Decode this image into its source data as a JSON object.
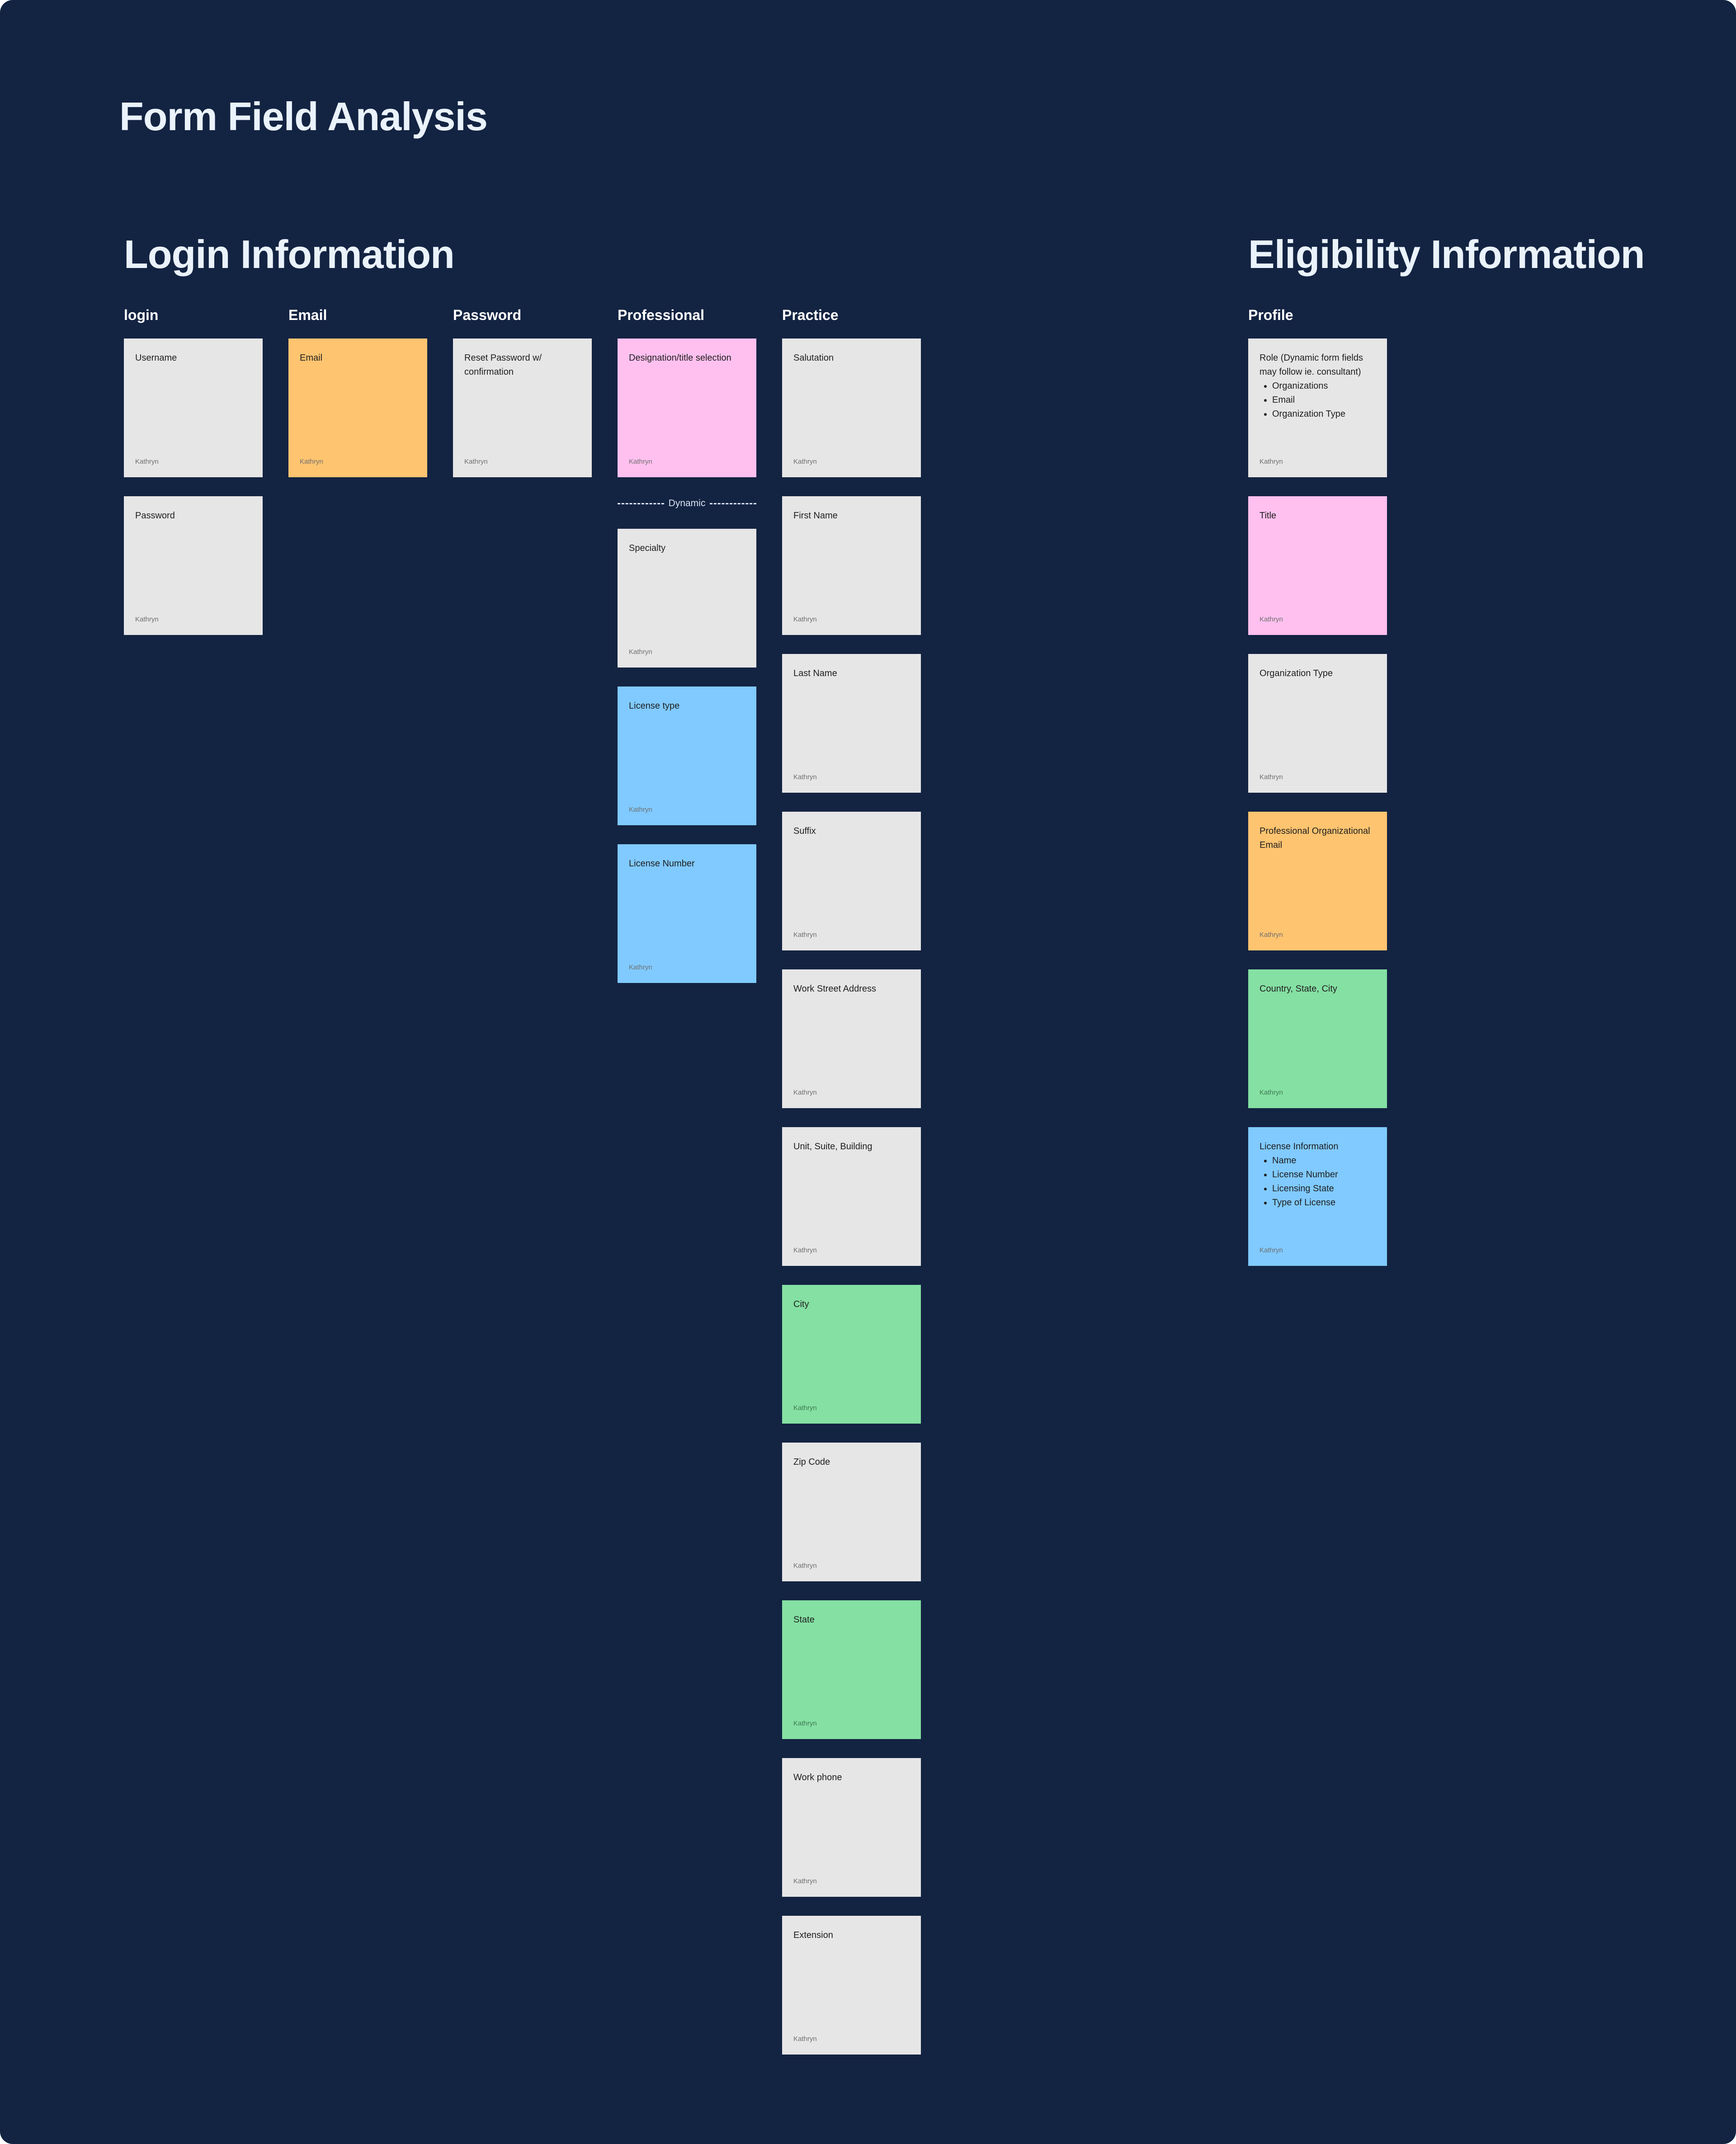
{
  "page_title": "Form Field Analysis",
  "default_author": "Kathryn",
  "sections": {
    "login": {
      "title": "Login Information"
    },
    "eligibility": {
      "title": "Eligibility Information"
    }
  },
  "columns": [
    {
      "id": "login",
      "header": "login",
      "notes": [
        {
          "text": "Username",
          "color": "gray"
        },
        {
          "text": "Password",
          "color": "gray"
        }
      ]
    },
    {
      "id": "email",
      "header": "Email",
      "notes": [
        {
          "text": "Email",
          "color": "orange"
        }
      ]
    },
    {
      "id": "password",
      "header": "Password",
      "notes": [
        {
          "text": "Reset Password w/ confirmation",
          "color": "gray"
        }
      ]
    },
    {
      "id": "professional",
      "header": "Professional",
      "notes": [
        {
          "text": "Designation/title selection",
          "color": "pink"
        },
        {
          "text": "Specialty",
          "color": "gray"
        },
        {
          "text": "License type",
          "color": "blue"
        },
        {
          "text": "License Number",
          "color": "blue"
        }
      ]
    },
    {
      "id": "practice",
      "header": "Practice",
      "notes": [
        {
          "text": "Salutation",
          "color": "gray"
        },
        {
          "text": "First Name",
          "color": "gray"
        },
        {
          "text": "Last Name",
          "color": "gray"
        },
        {
          "text": "Suffix",
          "color": "gray"
        },
        {
          "text": "Work Street Address",
          "color": "gray"
        },
        {
          "text": "Unit, Suite, Building",
          "color": "gray"
        },
        {
          "text": "City",
          "color": "green"
        },
        {
          "text": "Zip Code",
          "color": "gray"
        },
        {
          "text": "State",
          "color": "green"
        },
        {
          "text": "Work phone",
          "color": "gray"
        },
        {
          "text": "Extension",
          "color": "gray"
        }
      ]
    },
    {
      "id": "profile",
      "header": "Profile",
      "notes": [
        {
          "text": "Role (Dynamic form fields may follow ie. consultant)",
          "color": "gray",
          "bullets": [
            "Organizations",
            "Email",
            "Organization Type"
          ]
        },
        {
          "text": "Title",
          "color": "pink"
        },
        {
          "text": "Organization Type",
          "color": "gray"
        },
        {
          "text": "Professional Organizational Email",
          "color": "orange"
        },
        {
          "text": "Country, State, City",
          "color": "green"
        },
        {
          "text": "License Information",
          "color": "blue",
          "bullets": [
            "Name",
            "License Number",
            "Licensing State",
            "Type of License"
          ]
        }
      ]
    }
  ],
  "dynamic_divider": {
    "label": "Dynamic"
  },
  "colors": {
    "board": "#132342",
    "gray": "#e6e6e6",
    "orange": "#ffc470",
    "pink": "#ffc0ef",
    "blue": "#80caff",
    "green": "#85e0a3"
  }
}
